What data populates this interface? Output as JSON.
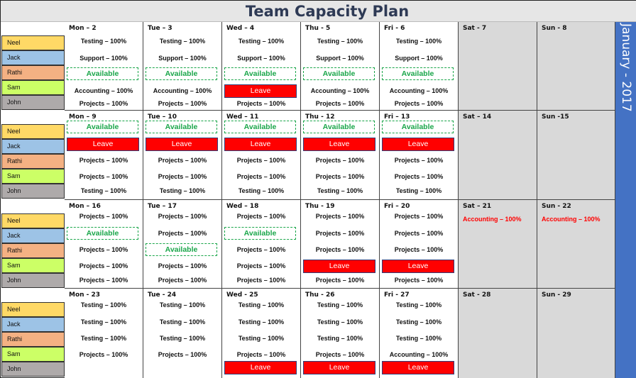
{
  "title": "Team Capacity Plan",
  "month_banner": "January - 2017",
  "colors": {
    "neel": "#ffd966",
    "jack": "#9dc3e6",
    "rathi": "#f4b183",
    "sam": "#ccff66",
    "john": "#aeaaaa",
    "available": "#1aa64a",
    "leave": "#ff0000",
    "banner": "#4472c4",
    "weekend": "#d9d9d9"
  },
  "team": [
    "Neel",
    "Jack",
    "Rathi",
    "Sam",
    "John"
  ],
  "weeks": [
    {
      "days": [
        {
          "label": "Mon – 2",
          "entries": [
            "Testing – 100%",
            "Support – 100%",
            "Available",
            "Accounting – 100%",
            "Projects – 100%"
          ]
        },
        {
          "label": "Tue – 3",
          "entries": [
            "Testing – 100%",
            "Support  – 100%",
            "Available",
            "Accounting – 100%",
            "Projects – 100%"
          ]
        },
        {
          "label": "Wed – 4",
          "entries": [
            "Testing – 100%",
            "Support – 100%",
            "Available",
            "Leave",
            "Projects – 100%"
          ]
        },
        {
          "label": "Thu - 5",
          "entries": [
            "Testing – 100%",
            "Support – 100%",
            "Available",
            "Accounting – 100%",
            "Projects – 100%"
          ]
        },
        {
          "label": "Fri - 6",
          "entries": [
            "Testing – 100%",
            "Support – 100%",
            "Available",
            "Accounting – 100%",
            "Projects – 100%"
          ]
        },
        {
          "label": "Sat - 7",
          "entries": []
        },
        {
          "label": "Sun - 8",
          "entries": []
        }
      ]
    },
    {
      "days": [
        {
          "label": "Mon – 9",
          "entries": [
            "Available",
            "Leave",
            "Projects – 100%",
            "Projects – 100%",
            "Testing – 100%"
          ]
        },
        {
          "label": "Tue – 10",
          "entries": [
            "Available",
            "Leave",
            "Projects – 100%",
            "Projects – 100%",
            "Testing – 100%"
          ]
        },
        {
          "label": "Wed – 11",
          "entries": [
            "Available",
            "Leave",
            "Projects – 100%",
            "Projects – 100%",
            "Testing – 100%"
          ]
        },
        {
          "label": "Thu - 12",
          "entries": [
            "Available",
            "Leave",
            "Projects – 100%",
            "Projects – 100%",
            "Testing – 100%"
          ]
        },
        {
          "label": "Fri – 13",
          "entries": [
            "Available",
            "Leave",
            "Projects – 100%",
            "Projects – 100%",
            "Testing – 100%"
          ]
        },
        {
          "label": "Sat – 14",
          "entries": []
        },
        {
          "label": "Sun -15",
          "entries": []
        }
      ]
    },
    {
      "days": [
        {
          "label": "Mon – 16",
          "entries": [
            "Projects – 100%",
            "Available",
            "Projects – 100%",
            "Projects – 100%",
            "Projects – 100%"
          ]
        },
        {
          "label": "Tue – 17",
          "entries": [
            "Projects – 100%",
            "Projects – 100%",
            "Available",
            "Projects – 100%",
            "Projects – 100%"
          ]
        },
        {
          "label": "Wed – 18",
          "entries": [
            "Projects – 100%",
            "Available",
            "Projects – 100%",
            "Projects – 100%",
            "Projects – 100%"
          ]
        },
        {
          "label": "Thu - 19",
          "entries": [
            "Projects – 100%",
            "Projects – 100%",
            "Projects – 100%",
            "Leave",
            "Projects – 100%"
          ]
        },
        {
          "label": "Fri – 20",
          "entries": [
            "Projects – 100%",
            "Projects – 100%",
            "Projects – 100%",
            "Leave",
            "Projects – 100%"
          ]
        },
        {
          "label": "Sat – 21",
          "entries": [
            "Accounting – 100%"
          ]
        },
        {
          "label": "Sun - 22",
          "entries": [
            "Accounting – 100%"
          ]
        }
      ]
    },
    {
      "days": [
        {
          "label": "Mon - 23",
          "entries": [
            "Testing – 100%",
            "Testing – 100%",
            "Testing – 100%",
            "Projects – 100%"
          ]
        },
        {
          "label": "Tue - 24",
          "entries": [
            "Testing – 100%",
            "Testing – 100%",
            "Testing – 100%",
            "Projects – 100%"
          ]
        },
        {
          "label": "Wed - 25",
          "entries": [
            "Testing – 100%",
            "Testing – 100%",
            "Testing – 100%",
            "Projects – 100%",
            "Leave"
          ]
        },
        {
          "label": "Thu - 26",
          "entries": [
            "Testing – 100%",
            "Testing – 100%",
            "Testing – 100%",
            "Projects – 100%",
            "Leave"
          ]
        },
        {
          "label": "Fri - 27",
          "entries": [
            "Testing – 100%",
            "Testing – 100%",
            "Testing – 100%",
            "Accounting – 100%",
            "Leave"
          ]
        },
        {
          "label": "Sat - 28",
          "entries": []
        },
        {
          "label": "Sun - 29",
          "entries": []
        }
      ]
    }
  ]
}
